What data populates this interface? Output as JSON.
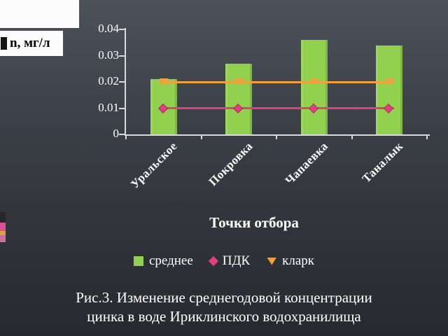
{
  "slide": {
    "y_axis_label": "n, мг/л",
    "x_axis_title": "Точки отбора",
    "caption": {
      "line1": "Рис.3. Изменение среднегодовой концентрации",
      "line2": "цинка в воде Ириклинского водохранилища"
    }
  },
  "chart_data": {
    "type": "bar",
    "title": "",
    "categories": [
      "Уральское",
      "Покровка",
      "Чапаевка",
      "Таналык"
    ],
    "series": [
      {
        "name": "среднее",
        "type": "bar",
        "marker": "square",
        "color": "#92d050",
        "values": [
          0.021,
          0.027,
          0.036,
          0.034
        ]
      },
      {
        "name": "ПДК",
        "type": "line",
        "marker": "diamond",
        "color": "#e0407e",
        "values": [
          0.01,
          0.01,
          0.01,
          0.01
        ]
      },
      {
        "name": "кларк",
        "type": "line",
        "marker": "flag",
        "color": "#efa13c",
        "values": [
          0.02,
          0.02,
          0.02,
          0.02
        ]
      }
    ],
    "xlabel": "Точки отбора",
    "ylabel": "n, мг/л",
    "ylim": [
      0,
      0.04
    ],
    "ytick_labels": [
      "0",
      "0.01",
      "0.02",
      "0.03",
      "0.04"
    ],
    "grid": false,
    "legend_position": "bottom",
    "axis_color": "#d9d9d9",
    "text_color": "#ffffff"
  }
}
